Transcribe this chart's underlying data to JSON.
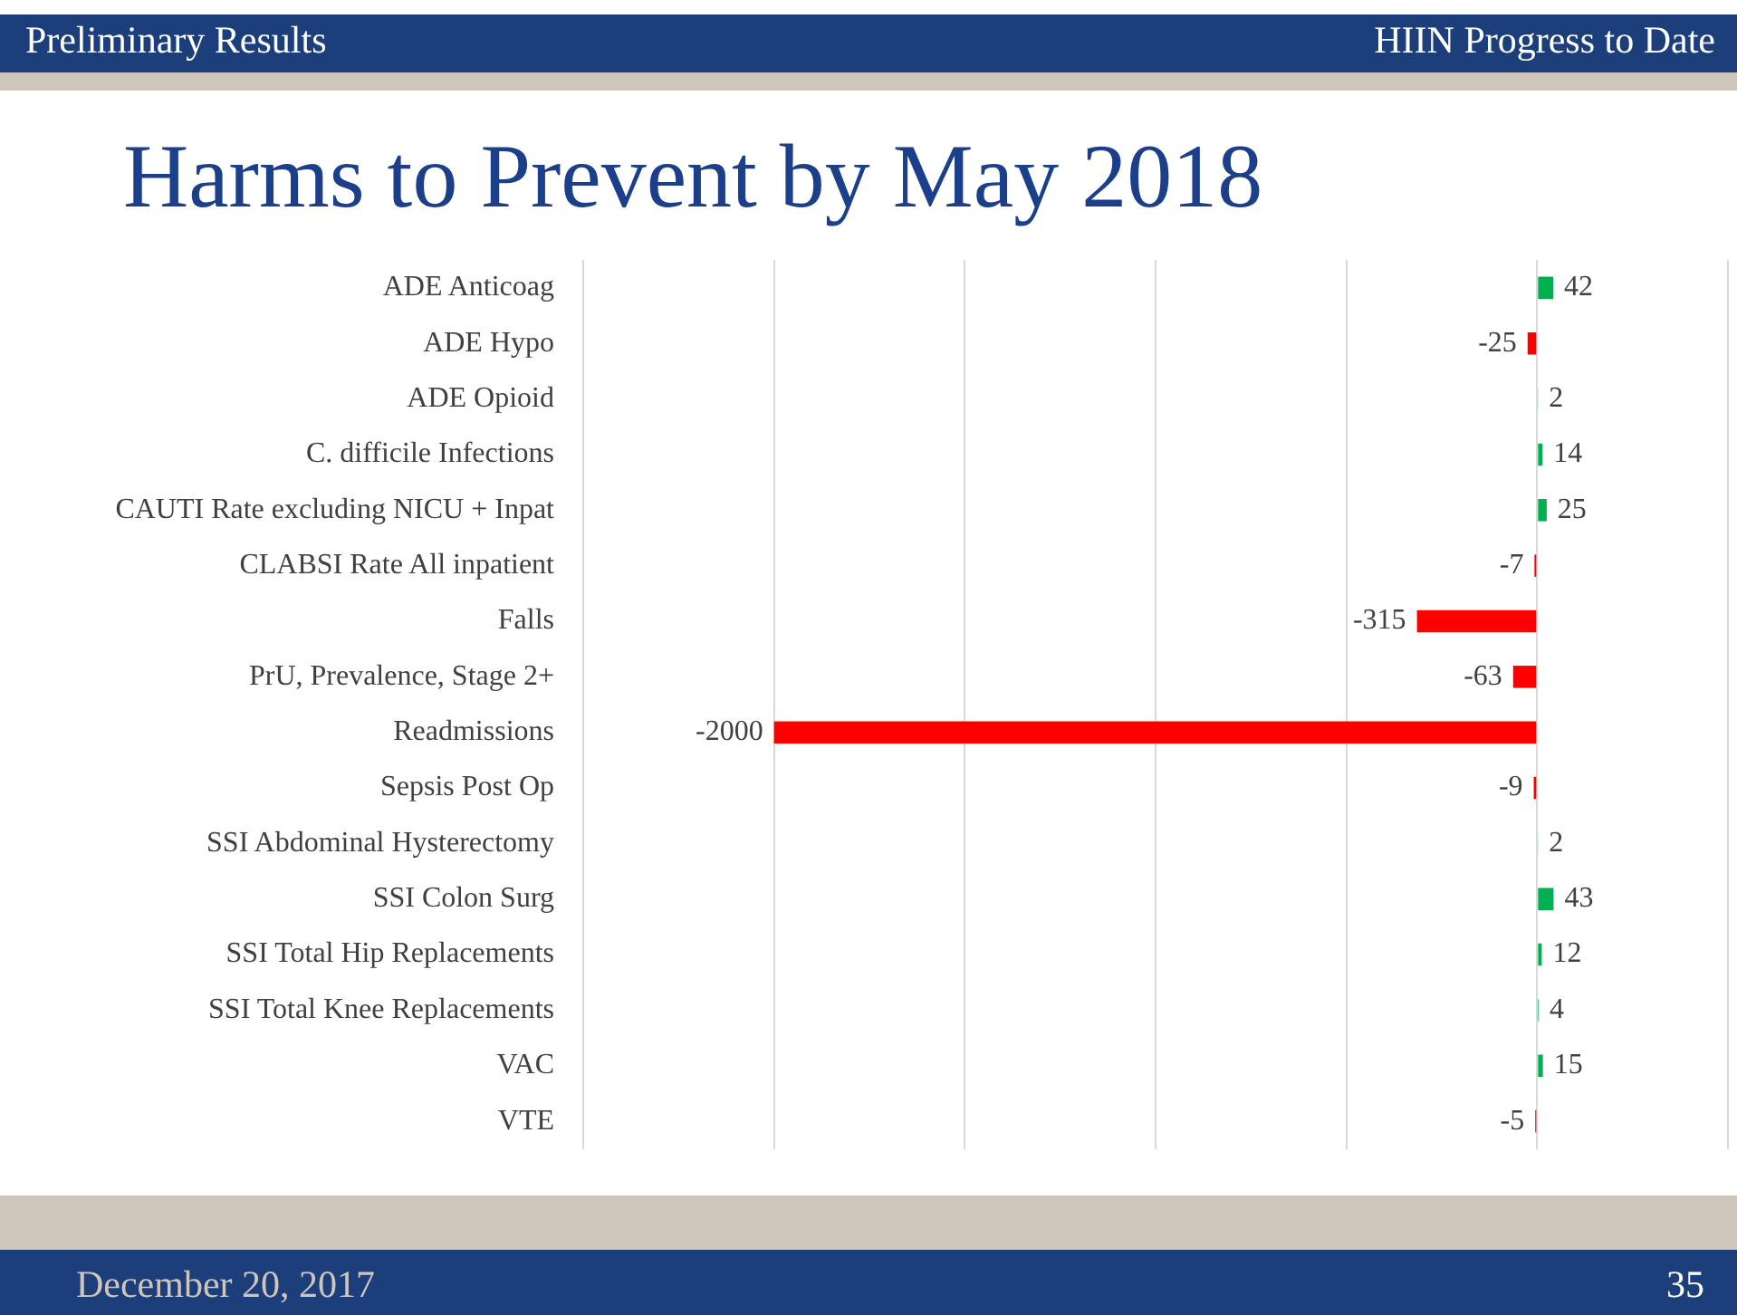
{
  "chart_data": {
    "type": "bar",
    "orientation": "horizontal",
    "title": "Harms to Prevent by May 2018",
    "annotations": [
      "Preliminary Results",
      "HIIN Progress to Date",
      "December 20, 2017",
      "35"
    ],
    "categories": [
      "ADE Anticoag",
      "ADE Hypo",
      "ADE Opioid",
      "C. difficile Infections",
      "CAUTI Rate excluding NICU + Inpat",
      "CLABSI Rate All inpatient",
      "Falls",
      "PrU, Prevalence, Stage 2+",
      "Readmissions",
      "Sepsis Post Op",
      "SSI Abdominal Hysterectomy",
      "SSI Colon Surg",
      "SSI Total Hip Replacements",
      "SSI Total Knee Replacements",
      "VAC",
      "VTE"
    ],
    "values": [
      42,
      -25,
      2,
      14,
      25,
      -7,
      -315,
      -63,
      -2000,
      -9,
      2,
      43,
      12,
      4,
      15,
      -5
    ],
    "colors": [
      "#00b050",
      "#ff0000",
      "#00b050",
      "#00b050",
      "#00b050",
      "#ff0000",
      "#ff0000",
      "#ff0000",
      "#ff0000",
      "#ff0000",
      "#00b050",
      "#00b050",
      "#00b050",
      "#00b050",
      "#00b050",
      "#ff0000"
    ],
    "xlim": [
      -2500,
      500
    ],
    "xticks": [
      {
        "value": -2500,
        "label": null
      },
      {
        "value": -2000,
        "label": null
      },
      {
        "value": -1500,
        "label": null
      },
      {
        "value": -1000,
        "label": null
      },
      {
        "value": -500,
        "label": null
      },
      {
        "value": 0,
        "label": null
      },
      {
        "value": 500,
        "label": null
      }
    ],
    "grid": "x",
    "tick_labels": false,
    "data_labels": true,
    "legend": false
  }
}
